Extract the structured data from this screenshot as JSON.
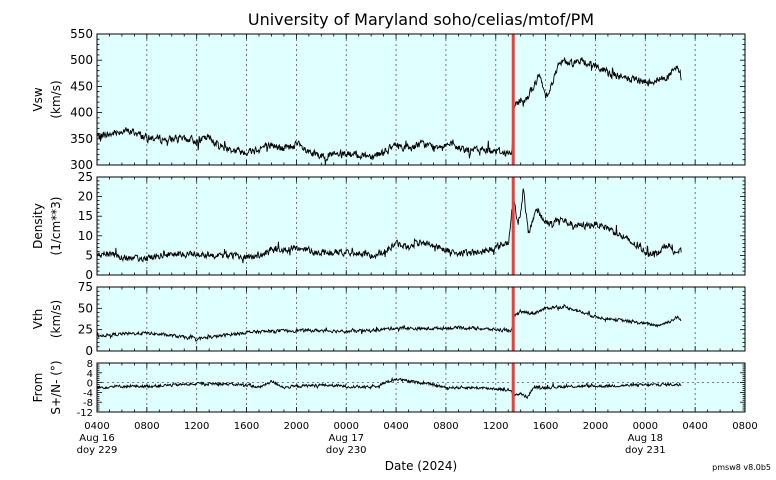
{
  "footer": "pmsw8 v8.0b5",
  "chart_data": {
    "type": "line",
    "title": "University of Maryland  soho/celias/mtof/PM",
    "xlabel": "Date (2024)",
    "x_ticks": [
      "0400",
      "0800",
      "1200",
      "1600",
      "2000",
      "0000",
      "0400",
      "0800",
      "1200",
      "1600",
      "2000",
      "0000",
      "0400",
      "0800"
    ],
    "x_tick_hours": [
      4,
      8,
      12,
      16,
      20,
      24,
      28,
      32,
      36,
      40,
      44,
      48,
      52,
      56
    ],
    "day_labels": [
      {
        "hour": 4,
        "date": "Aug 16",
        "doy": "doy 229"
      },
      {
        "hour": 24,
        "date": "Aug 17",
        "doy": "doy 230"
      },
      {
        "hour": 48,
        "date": "Aug 18",
        "doy": "doy 231"
      }
    ],
    "xlim_hours_since_Aug16_0000": [
      4,
      56
    ],
    "event_marker_hour": 37.4,
    "event_marker_color": "#e8403c",
    "background_color": "#e0ffff",
    "line_color": "#000000",
    "grid": true,
    "panels": [
      {
        "key": "vsw",
        "ylabel": [
          "Vsw",
          "(km/s)"
        ],
        "ylim": [
          300,
          550
        ],
        "yticks": [
          300,
          350,
          400,
          450,
          500,
          550
        ],
        "noise": 10,
        "profile": [
          [
            4,
            355
          ],
          [
            5,
            358
          ],
          [
            6,
            366
          ],
          [
            7,
            362
          ],
          [
            8,
            352
          ],
          [
            9,
            350
          ],
          [
            10,
            348
          ],
          [
            11,
            350
          ],
          [
            12,
            346
          ],
          [
            13,
            352
          ],
          [
            14,
            335
          ],
          [
            15,
            328
          ],
          [
            16,
            325
          ],
          [
            17,
            332
          ],
          [
            18,
            338
          ],
          [
            19,
            330
          ],
          [
            20,
            340
          ],
          [
            21,
            322
          ],
          [
            22,
            318
          ],
          [
            24,
            320
          ],
          [
            26,
            318
          ],
          [
            27,
            325
          ],
          [
            28,
            338
          ],
          [
            29,
            332
          ],
          [
            30,
            340
          ],
          [
            31,
            335
          ],
          [
            32,
            340
          ],
          [
            33,
            332
          ],
          [
            34,
            328
          ],
          [
            35,
            330
          ],
          [
            36,
            328
          ],
          [
            37,
            322
          ],
          [
            37.3,
            322
          ],
          [
            37.4,
            405
          ],
          [
            37.7,
            422
          ],
          [
            38.5,
            428
          ],
          [
            39,
            450
          ],
          [
            39.5,
            470
          ],
          [
            40,
            432
          ],
          [
            40.5,
            455
          ],
          [
            41,
            490
          ],
          [
            41.5,
            498
          ],
          [
            42,
            495
          ],
          [
            43,
            498
          ],
          [
            44,
            490
          ],
          [
            45,
            475
          ],
          [
            46,
            468
          ],
          [
            47,
            462
          ],
          [
            48,
            458
          ],
          [
            49,
            462
          ],
          [
            50,
            472
          ],
          [
            50.6,
            488
          ],
          [
            50.9,
            465
          ]
        ]
      },
      {
        "key": "density",
        "ylabel": [
          "Density",
          "(1/cm**3)"
        ],
        "ylim": [
          0,
          25
        ],
        "yticks": [
          0,
          5,
          10,
          15,
          20,
          25
        ],
        "noise": 1.2,
        "profile": [
          [
            4,
            5
          ],
          [
            5,
            5.5
          ],
          [
            6,
            4.5
          ],
          [
            7,
            4
          ],
          [
            8,
            4.5
          ],
          [
            10,
            5
          ],
          [
            12,
            5.5
          ],
          [
            14,
            5
          ],
          [
            16,
            4.5
          ],
          [
            17,
            5
          ],
          [
            18,
            6
          ],
          [
            20,
            7
          ],
          [
            21,
            6.5
          ],
          [
            22,
            5.5
          ],
          [
            24,
            6
          ],
          [
            25,
            5.5
          ],
          [
            26,
            5
          ],
          [
            27,
            6
          ],
          [
            28,
            8
          ],
          [
            29,
            7
          ],
          [
            30,
            8.5
          ],
          [
            31,
            7.5
          ],
          [
            32,
            6.5
          ],
          [
            33,
            5.5
          ],
          [
            34,
            5.5
          ],
          [
            35,
            6
          ],
          [
            36,
            7
          ],
          [
            37,
            8.5
          ],
          [
            37.4,
            20
          ],
          [
            37.8,
            12
          ],
          [
            38.2,
            22
          ],
          [
            38.6,
            10
          ],
          [
            39.2,
            17
          ],
          [
            39.8,
            14
          ],
          [
            40.5,
            13
          ],
          [
            41,
            14.5
          ],
          [
            42,
            13
          ],
          [
            43,
            12.5
          ],
          [
            44,
            13
          ],
          [
            45,
            12
          ],
          [
            46,
            10
          ],
          [
            47,
            8
          ],
          [
            48,
            6
          ],
          [
            49,
            5.5
          ],
          [
            49.8,
            8
          ],
          [
            50.2,
            6
          ],
          [
            50.9,
            6
          ]
        ]
      },
      {
        "key": "vth",
        "ylabel": [
          "Vth",
          "(km/s)"
        ],
        "ylim": [
          0,
          75
        ],
        "yticks": [
          0,
          25,
          50,
          75
        ],
        "noise": 2.5,
        "profile": [
          [
            4,
            18
          ],
          [
            6,
            20
          ],
          [
            8,
            21
          ],
          [
            10,
            18
          ],
          [
            12,
            14
          ],
          [
            14,
            18
          ],
          [
            16,
            22
          ],
          [
            18,
            23
          ],
          [
            20,
            24
          ],
          [
            22,
            24
          ],
          [
            24,
            23
          ],
          [
            26,
            24
          ],
          [
            28,
            27
          ],
          [
            30,
            26
          ],
          [
            32,
            27
          ],
          [
            34,
            27
          ],
          [
            36,
            25
          ],
          [
            37.3,
            24
          ],
          [
            37.4,
            40
          ],
          [
            38,
            46
          ],
          [
            39,
            44
          ],
          [
            40,
            50
          ],
          [
            41,
            52
          ],
          [
            42,
            50
          ],
          [
            43,
            45
          ],
          [
            44,
            40
          ],
          [
            46,
            36
          ],
          [
            48,
            32
          ],
          [
            49,
            30
          ],
          [
            50,
            35
          ],
          [
            50.6,
            40
          ],
          [
            50.9,
            34
          ]
        ]
      },
      {
        "key": "from",
        "ylabel": [
          "From",
          "S+/N- (°)"
        ],
        "ylim": [
          -12,
          8
        ],
        "yticks": [
          -12,
          -8,
          -4,
          0,
          4,
          8
        ],
        "noise": 0.8,
        "zero_line": true,
        "profile": [
          [
            4,
            -2
          ],
          [
            6,
            -1.5
          ],
          [
            8,
            -1.5
          ],
          [
            10,
            -1
          ],
          [
            12,
            -0.5
          ],
          [
            14,
            -0.5
          ],
          [
            16,
            -1
          ],
          [
            17,
            -2
          ],
          [
            18,
            0.5
          ],
          [
            19,
            -2
          ],
          [
            20,
            -1.5
          ],
          [
            22,
            -1
          ],
          [
            24,
            -1.5
          ],
          [
            26,
            -2
          ],
          [
            28,
            1.5
          ],
          [
            29,
            0.5
          ],
          [
            30,
            0
          ],
          [
            31,
            -1
          ],
          [
            32,
            -2
          ],
          [
            34,
            -2
          ],
          [
            36,
            -2.5
          ],
          [
            37,
            -3
          ],
          [
            37.5,
            -5
          ],
          [
            38,
            -4.5
          ],
          [
            38.5,
            -6
          ],
          [
            39,
            -2
          ],
          [
            40,
            -2
          ],
          [
            42,
            -1.5
          ],
          [
            44,
            -1.5
          ],
          [
            46,
            -1.2
          ],
          [
            48,
            -1
          ],
          [
            49,
            -0.8
          ],
          [
            50.9,
            -0.8
          ]
        ]
      }
    ]
  }
}
